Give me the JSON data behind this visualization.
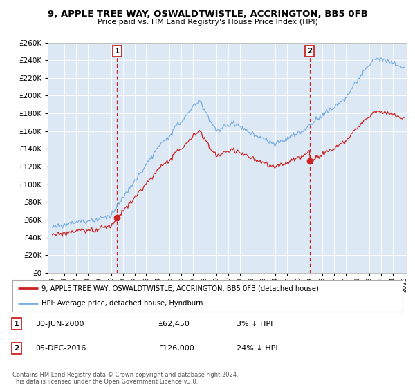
{
  "title": "9, APPLE TREE WAY, OSWALDTWISTLE, ACCRINGTON, BB5 0FB",
  "subtitle": "Price paid vs. HM Land Registry's House Price Index (HPI)",
  "legend_line1": "9, APPLE TREE WAY, OSWALDTWISTLE, ACCRINGTON, BB5 0FB (detached house)",
  "legend_line2": "HPI: Average price, detached house, Hyndburn",
  "annotation1_label": "1",
  "annotation1_date": "30-JUN-2000",
  "annotation1_price": "£62,450",
  "annotation1_pct": "3% ↓ HPI",
  "annotation2_label": "2",
  "annotation2_date": "05-DEC-2016",
  "annotation2_price": "£126,000",
  "annotation2_pct": "24% ↓ HPI",
  "footer": "Contains HM Land Registry data © Crown copyright and database right 2024.\nThis data is licensed under the Open Government Licence v3.0.",
  "hpi_color": "#7aade0",
  "price_color": "#cc2222",
  "annotation_color": "#cc2222",
  "ylim_min": 0,
  "ylim_max": 260000,
  "background_color": "#ffffff",
  "chart_bg_color": "#dce9f5",
  "grid_color": "#ffffff",
  "sale1_year": 2000.5,
  "sale1_price": 62450,
  "sale2_year": 2016.92,
  "sale2_price": 126000
}
